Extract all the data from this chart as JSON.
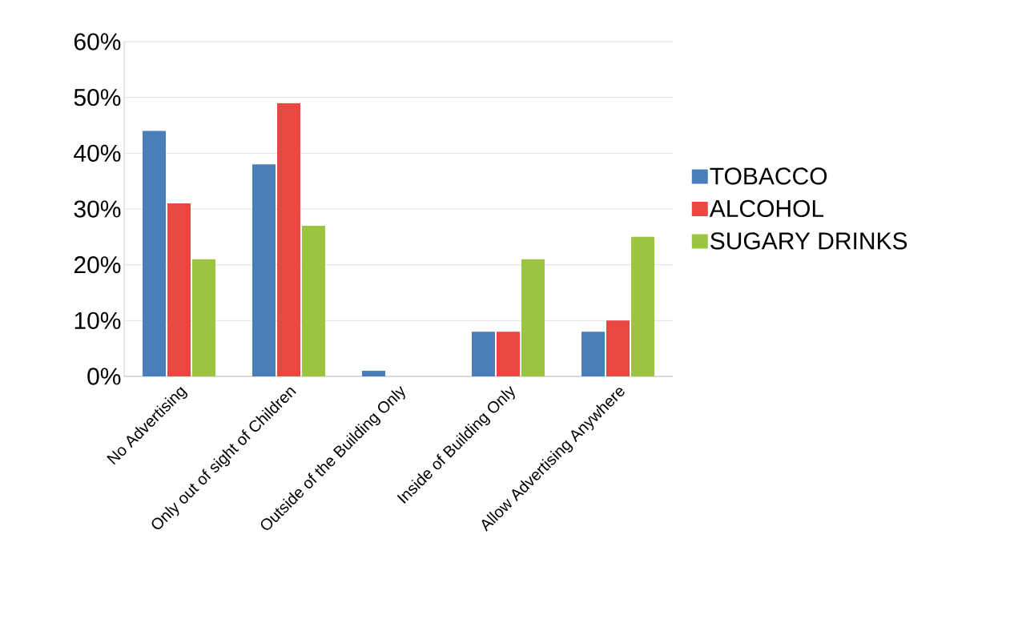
{
  "chart_data": {
    "type": "bar",
    "categories": [
      "No Advertising",
      "Only out of sight of Children",
      "Outside of the Building Only",
      "Inside of Building Only",
      "Allow Advertising Anywhere"
    ],
    "series": [
      {
        "name": "TOBACCO",
        "color": "#4a7ebb",
        "values": [
          44,
          38,
          1,
          8,
          8
        ]
      },
      {
        "name": "ALCOHOL",
        "color": "#e8483f",
        "values": [
          31,
          49,
          0,
          8,
          10
        ]
      },
      {
        "name": "SUGARY DRINKS",
        "color": "#9bc440",
        "values": [
          21,
          27,
          0,
          21,
          25
        ]
      }
    ],
    "ylim": [
      0,
      60
    ],
    "yticks": [
      {
        "value": 0,
        "label": "0%"
      },
      {
        "value": 10,
        "label": "10%"
      },
      {
        "value": 20,
        "label": "20%"
      },
      {
        "value": 30,
        "label": "30%"
      },
      {
        "value": 40,
        "label": "40%"
      },
      {
        "value": 50,
        "label": "50%"
      },
      {
        "value": 60,
        "label": "60%"
      }
    ],
    "grid": "y",
    "legend": "right"
  }
}
